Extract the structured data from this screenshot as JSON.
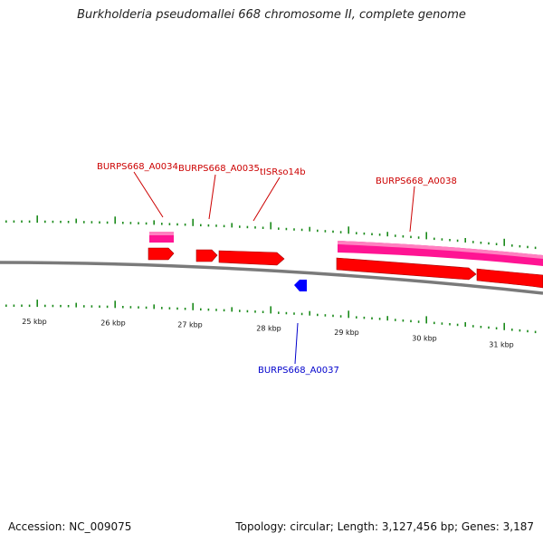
{
  "title": "Burkholderia pseudomallei 668 chromosome II, complete genome",
  "footer": {
    "accession": "Accession: NC_009075",
    "stats": "Topology: circular; Length: 3,127,456 bp; Genes: 3,187"
  },
  "colors": {
    "forward_gene": "#ff0000",
    "forward_gene_dark": "#b00000",
    "cds_feature": "#ff1493",
    "reverse_gene": "#0000ff",
    "label_forward": "#cc0000",
    "label_reverse": "#0000cc",
    "backbone": "#808080",
    "ticks": "#1a8a1a"
  },
  "scale_labels": [
    "25 kbp",
    "26 kbp",
    "27 kbp",
    "28 kbp",
    "29 kbp",
    "30 kbp",
    "31 kbp"
  ],
  "gene_labels": {
    "a0034": "BURPS668_A0034",
    "a0035": "BURPS668_A0035",
    "trna": "tISRso14b",
    "a0038": "BURPS668_A0038",
    "a0037": "BURPS668_A0037"
  }
}
